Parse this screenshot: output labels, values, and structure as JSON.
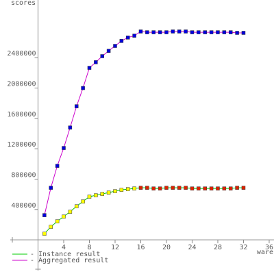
{
  "chart_data": {
    "type": "line",
    "y_label": "scores",
    "x_label": "ware",
    "xlim": [
      -4,
      36.75
    ],
    "ylim": [
      -450000,
      3160000
    ],
    "xticks": [
      4,
      8,
      12,
      16,
      20,
      24,
      28,
      32,
      36
    ],
    "yticks": [
      400000,
      800000,
      1200000,
      1600000,
      2000000,
      2400000
    ],
    "x": [
      1,
      2,
      3,
      4,
      5,
      6,
      7,
      8,
      9,
      10,
      11,
      12,
      13,
      14,
      15,
      16,
      17,
      18,
      19,
      20,
      21,
      22,
      23,
      24,
      25,
      26,
      27,
      28,
      29,
      30,
      31,
      32
    ],
    "series": [
      {
        "name": "- Instance result",
        "color": "#00cc00",
        "marker_colors": [
          "#ffff00",
          "#ffff00",
          "#ffff00",
          "#ffff00",
          "#ffff00",
          "#ffff00",
          "#ffff00",
          "#ffff00",
          "#ffff00",
          "#ffff00",
          "#ffff00",
          "#ffff00",
          "#ffff00",
          "#ffff00",
          "#ffff00",
          "#dd2200",
          "#dd2200",
          "#dd2200",
          "#dd2200",
          "#dd2200",
          "#dd2200",
          "#dd2200",
          "#dd2200",
          "#dd2200",
          "#dd2200",
          "#dd2200",
          "#dd2200",
          "#dd2200",
          "#dd2200",
          "#dd2200",
          "#dd2200",
          "#dd2200"
        ],
        "values": [
          81000,
          172000,
          244000,
          307000,
          370000,
          442000,
          506000,
          569000,
          587000,
          605000,
          623000,
          641000,
          659000,
          668000,
          677000,
          686000,
          686000,
          677000,
          677000,
          686000,
          686000,
          686000,
          686000,
          677000,
          677000,
          677000,
          677000,
          677000,
          677000,
          677000,
          686000,
          686000
        ]
      },
      {
        "name": "- Aggregated result",
        "color": "#cc00cc",
        "marker_colors": [
          "#0000dd",
          "#0000dd",
          "#0000dd",
          "#0000dd",
          "#0000dd",
          "#0000dd",
          "#0000dd",
          "#0000dd",
          "#0000dd",
          "#0000dd",
          "#0000dd",
          "#0000dd",
          "#0000dd",
          "#0000dd",
          "#0000dd",
          "#0000dd",
          "#0000dd",
          "#0000dd",
          "#0000dd",
          "#0000dd",
          "#0000dd",
          "#0000dd",
          "#0000dd",
          "#0000dd",
          "#0000dd",
          "#0000dd",
          "#0000dd",
          "#0000dd",
          "#0000dd",
          "#0000dd",
          "#0000dd",
          "#0000dd"
        ],
        "values": [
          325000,
          686000,
          975000,
          1210000,
          1480000,
          1760000,
          2000000,
          2266000,
          2340000,
          2420000,
          2490000,
          2555000,
          2620000,
          2665000,
          2690000,
          2745000,
          2735000,
          2735000,
          2735000,
          2735000,
          2745000,
          2745000,
          2745000,
          2735000,
          2735000,
          2735000,
          2735000,
          2735000,
          2735000,
          2735000,
          2727000,
          2727000
        ]
      }
    ]
  }
}
